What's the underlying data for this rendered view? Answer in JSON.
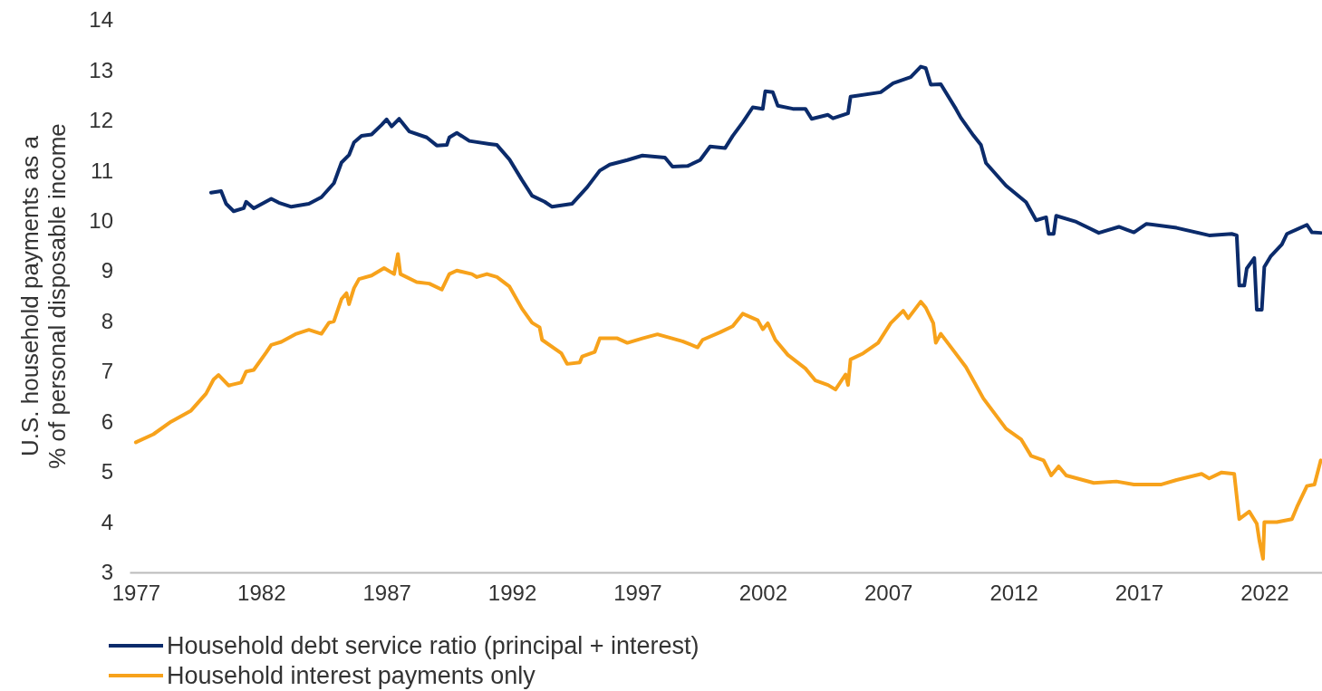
{
  "chart_data": {
    "type": "line",
    "ylabel": "U.S. household payments as a\n% of personal disposable income",
    "xlim": [
      1976.75,
      2024.3
    ],
    "xticks": [
      1977,
      1982,
      1987,
      1992,
      1997,
      2002,
      2007,
      2012,
      2017,
      2022
    ],
    "ylim": [
      3,
      14
    ],
    "yticks": [
      3,
      4,
      5,
      6,
      7,
      8,
      9,
      10,
      11,
      12,
      13,
      14
    ],
    "grid": false,
    "legend": "bottom",
    "line_style": "solid",
    "marker": "none",
    "series": [
      {
        "name": "Household debt service ratio (principal + interest)",
        "color": "#0b2b6b",
        "x": [
          1980.0,
          1980.4,
          1980.6,
          1980.9,
          1981.3,
          1981.4,
          1981.7,
          1982.4,
          1982.7,
          1983.2,
          1983.9,
          1984.4,
          1984.9,
          1985.2,
          1985.5,
          1985.7,
          1986.0,
          1986.4,
          1986.8,
          1987.0,
          1987.2,
          1987.5,
          1987.9,
          1988.6,
          1989.0,
          1989.4,
          1989.5,
          1989.8,
          1990.3,
          1991.1,
          1991.4,
          1991.9,
          1992.4,
          1992.8,
          1993.3,
          1993.6,
          1994.4,
          1995.0,
          1995.5,
          1995.9,
          1996.6,
          1997.2,
          1998.1,
          1998.4,
          1999.0,
          1999.5,
          1999.9,
          2000.5,
          2000.8,
          2001.2,
          2001.6,
          2002.0,
          2002.1,
          2002.4,
          2002.6,
          2003.2,
          2003.7,
          2003.95,
          2004.6,
          2004.8,
          2005.4,
          2005.5,
          2006.7,
          2007.2,
          2007.9,
          2008.3,
          2008.5,
          2008.7,
          2009.1,
          2009.7,
          2009.9,
          2010.4,
          2010.7,
          2010.9,
          2011.7,
          2012.5,
          2012.9,
          2013.3,
          2013.4,
          2013.6,
          2013.7,
          2014.5,
          2015.4,
          2016.2,
          2016.8,
          2017.3,
          2018.5,
          2019.8,
          2020.7,
          2020.9,
          2021.0,
          2021.2,
          2021.3,
          2021.6,
          2021.7,
          2021.9,
          2022.0,
          2022.25,
          2022.7,
          2022.9,
          2023.7,
          2023.9,
          2024.25
        ],
        "values": [
          10.56,
          10.59,
          10.34,
          10.19,
          10.25,
          10.38,
          10.25,
          10.44,
          10.36,
          10.28,
          10.34,
          10.47,
          10.75,
          11.16,
          11.31,
          11.56,
          11.69,
          11.72,
          11.91,
          12.02,
          11.88,
          12.03,
          11.78,
          11.66,
          11.5,
          11.51,
          11.66,
          11.75,
          11.59,
          11.53,
          11.51,
          11.22,
          10.81,
          10.5,
          10.38,
          10.28,
          10.34,
          10.67,
          11.0,
          11.12,
          11.21,
          11.3,
          11.26,
          11.08,
          11.09,
          11.21,
          11.48,
          11.45,
          11.69,
          11.96,
          12.26,
          12.23,
          12.58,
          12.56,
          12.29,
          12.23,
          12.23,
          12.03,
          12.11,
          12.04,
          12.14,
          12.47,
          12.56,
          12.74,
          12.86,
          13.07,
          13.04,
          12.71,
          12.72,
          12.23,
          12.05,
          11.7,
          11.51,
          11.15,
          10.7,
          10.37,
          10.01,
          10.07,
          9.74,
          9.74,
          10.1,
          9.98,
          9.76,
          9.88,
          9.77,
          9.94,
          9.86,
          9.71,
          9.74,
          9.71,
          8.71,
          8.71,
          9.05,
          9.26,
          8.23,
          8.23,
          9.08,
          9.29,
          9.53,
          9.74,
          9.92,
          9.77,
          9.76
        ]
      },
      {
        "name": "Household interest payments only",
        "color": "#f7a21b",
        "x": [
          1977.0,
          1977.7,
          1978.4,
          1979.2,
          1979.8,
          1980.1,
          1980.3,
          1980.7,
          1981.2,
          1981.4,
          1981.7,
          1982.2,
          1982.4,
          1982.8,
          1983.4,
          1983.9,
          1984.4,
          1984.7,
          1984.9,
          1985.2,
          1985.4,
          1985.5,
          1985.7,
          1985.9,
          1986.4,
          1986.9,
          1987.3,
          1987.45,
          1987.55,
          1988.2,
          1988.7,
          1989.2,
          1989.5,
          1989.8,
          1990.4,
          1990.6,
          1991.0,
          1991.4,
          1991.9,
          1992.4,
          1992.8,
          1993.1,
          1993.2,
          1993.97,
          1994.2,
          1994.7,
          1994.8,
          1995.3,
          1995.5,
          1996.2,
          1996.6,
          1997.2,
          1997.8,
          1998.8,
          1999.4,
          1999.6,
          2000.3,
          2000.8,
          2001.2,
          2001.8,
          2002.0,
          2002.2,
          2002.5,
          2003.0,
          2003.7,
          2004.1,
          2004.6,
          2004.9,
          2005.3,
          2005.4,
          2005.5,
          2006.0,
          2006.6,
          2007.1,
          2007.6,
          2007.8,
          2008.3,
          2008.5,
          2008.8,
          2008.9,
          2009.1,
          2009.6,
          2010.1,
          2010.8,
          2011.7,
          2012.3,
          2012.7,
          2013.2,
          2013.5,
          2013.8,
          2014.1,
          2015.2,
          2016.1,
          2016.8,
          2017.9,
          2018.5,
          2019.5,
          2019.8,
          2020.3,
          2020.8,
          2021.0,
          2021.4,
          2021.7,
          2021.8,
          2021.95,
          2022.0,
          2022.5,
          2023.1,
          2023.3,
          2023.7,
          2024.0,
          2024.25
        ],
        "values": [
          5.59,
          5.75,
          6.0,
          6.22,
          6.56,
          6.84,
          6.93,
          6.72,
          6.78,
          7.0,
          7.03,
          7.38,
          7.53,
          7.59,
          7.75,
          7.83,
          7.75,
          7.97,
          8.0,
          8.44,
          8.56,
          8.34,
          8.66,
          8.84,
          8.91,
          9.06,
          8.94,
          9.34,
          8.94,
          8.78,
          8.75,
          8.63,
          8.94,
          9.01,
          8.94,
          8.88,
          8.94,
          8.88,
          8.69,
          8.25,
          7.97,
          7.88,
          7.63,
          7.36,
          7.15,
          7.18,
          7.3,
          7.39,
          7.66,
          7.66,
          7.57,
          7.66,
          7.74,
          7.6,
          7.48,
          7.63,
          7.78,
          7.9,
          8.15,
          8.02,
          7.84,
          7.96,
          7.63,
          7.33,
          7.06,
          6.82,
          6.73,
          6.64,
          6.94,
          6.73,
          7.24,
          7.36,
          7.57,
          7.96,
          8.21,
          8.06,
          8.39,
          8.27,
          7.96,
          7.57,
          7.75,
          7.42,
          7.09,
          6.46,
          5.86,
          5.65,
          5.32,
          5.23,
          4.93,
          5.11,
          4.93,
          4.78,
          4.81,
          4.75,
          4.75,
          4.84,
          4.96,
          4.87,
          4.99,
          4.96,
          4.06,
          4.21,
          3.97,
          3.64,
          3.27,
          4.0,
          4.0,
          4.06,
          4.3,
          4.72,
          4.75,
          5.23
        ]
      }
    ]
  }
}
